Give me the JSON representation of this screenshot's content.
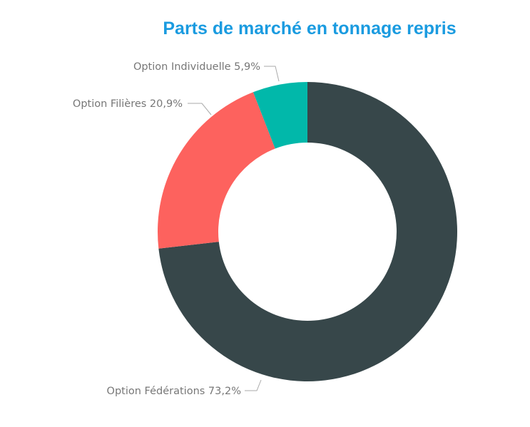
{
  "chart_data": {
    "type": "pie",
    "donut": true,
    "title": "Parts de marché en tonnage repris",
    "slices": [
      {
        "label": "Option Fédérations",
        "value": 73.2,
        "display": "73,2%",
        "color": "#37474a"
      },
      {
        "label": "Option Filières",
        "value": 20.9,
        "display": "20,9%",
        "color": "#fd625e"
      },
      {
        "label": "Option Individuelle",
        "value": 5.9,
        "display": "5,9%",
        "color": "#01b8aa"
      }
    ],
    "start": "top",
    "direction": "clockwise",
    "title_color": "#1a9be0"
  }
}
